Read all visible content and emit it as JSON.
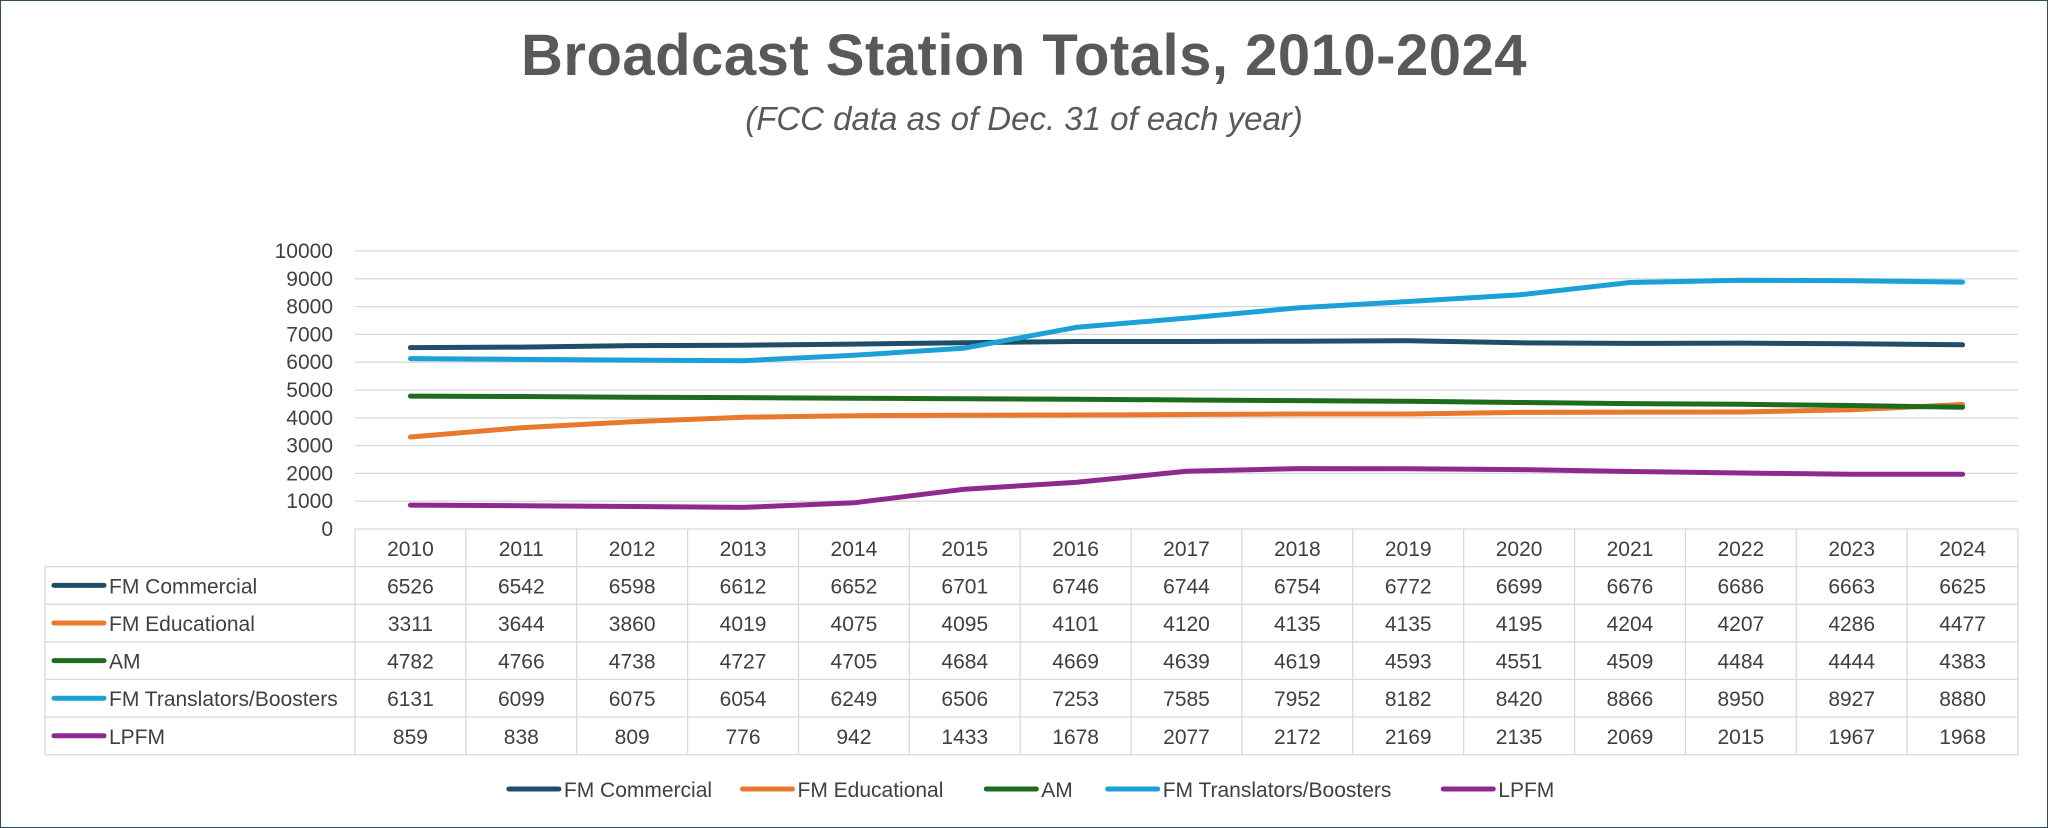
{
  "chart_data": {
    "type": "line",
    "title": "Broadcast Station Totals, 2010-2024",
    "subtitle": "(FCC data as of Dec. 31 of each year)",
    "xlabel": "",
    "ylabel": "",
    "ylim": [
      0,
      10000
    ],
    "yticks": [
      0,
      1000,
      2000,
      3000,
      4000,
      5000,
      6000,
      7000,
      8000,
      9000,
      10000
    ],
    "grid": true,
    "legend_position": "bottom",
    "data_table": true,
    "categories": [
      "2010",
      "2011",
      "2012",
      "2013",
      "2014",
      "2015",
      "2016",
      "2017",
      "2018",
      "2019",
      "2020",
      "2021",
      "2022",
      "2023",
      "2024"
    ],
    "series": [
      {
        "name": "FM Commercial",
        "color": "#1f4e69",
        "values": [
          6526,
          6542,
          6598,
          6612,
          6652,
          6701,
          6746,
          6744,
          6754,
          6772,
          6699,
          6676,
          6686,
          6663,
          6625
        ]
      },
      {
        "name": "FM Educational",
        "color": "#e8792f",
        "values": [
          3311,
          3644,
          3860,
          4019,
          4075,
          4095,
          4101,
          4120,
          4135,
          4135,
          4195,
          4204,
          4207,
          4286,
          4477
        ]
      },
      {
        "name": "AM",
        "color": "#1d6b1d",
        "values": [
          4782,
          4766,
          4738,
          4727,
          4705,
          4684,
          4669,
          4639,
          4619,
          4593,
          4551,
          4509,
          4484,
          4444,
          4383
        ]
      },
      {
        "name": "FM Translators/Boosters",
        "color": "#1ba1d6",
        "values": [
          6131,
          6099,
          6075,
          6054,
          6249,
          6506,
          7253,
          7585,
          7952,
          8182,
          8420,
          8866,
          8950,
          8927,
          8880
        ]
      },
      {
        "name": "LPFM",
        "color": "#8e2a8e",
        "values": [
          859,
          838,
          809,
          776,
          942,
          1433,
          1678,
          2077,
          2172,
          2169,
          2135,
          2069,
          2015,
          1967,
          1968
        ]
      }
    ]
  }
}
